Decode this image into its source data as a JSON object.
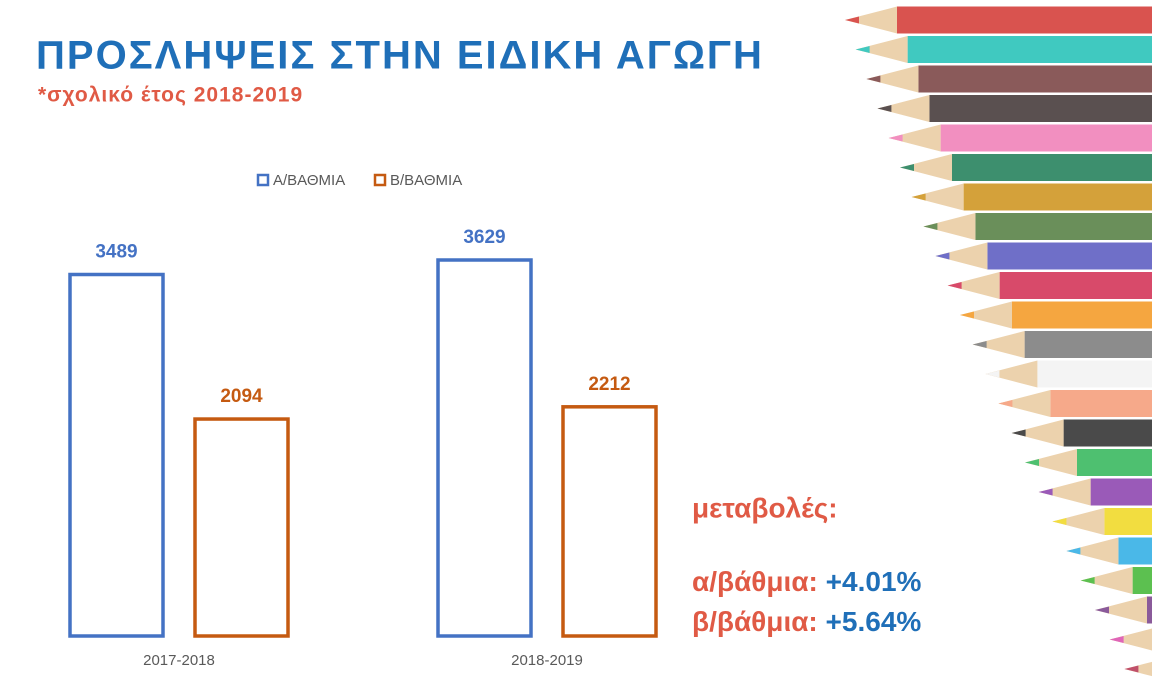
{
  "chart_data": {
    "type": "bar",
    "title": "ΠΡΟΣΛΗΨΕΙΣ ΣΤΗΝ ΕΙΔΙΚΗ ΑΓΩΓΗ",
    "subtitle": "*σχολικό έτος 2018-2019",
    "categories": [
      "2017-2018",
      "2018-2019"
    ],
    "series": [
      {
        "name": "Α/ΒΑΘΜΙΑ",
        "color": "#4472c4",
        "values": [
          3489,
          3629
        ]
      },
      {
        "name": "Β/ΒΑΘΜΙΑ",
        "color": "#c55a11",
        "values": [
          2094,
          2212
        ]
      }
    ],
    "annotations": {
      "heading": "μεταβολές:",
      "items": [
        {
          "label": "α/βάθμια:",
          "value": "+4.01%"
        },
        {
          "label": "β/βάθμια:",
          "value": "+5.64%"
        }
      ]
    }
  }
}
